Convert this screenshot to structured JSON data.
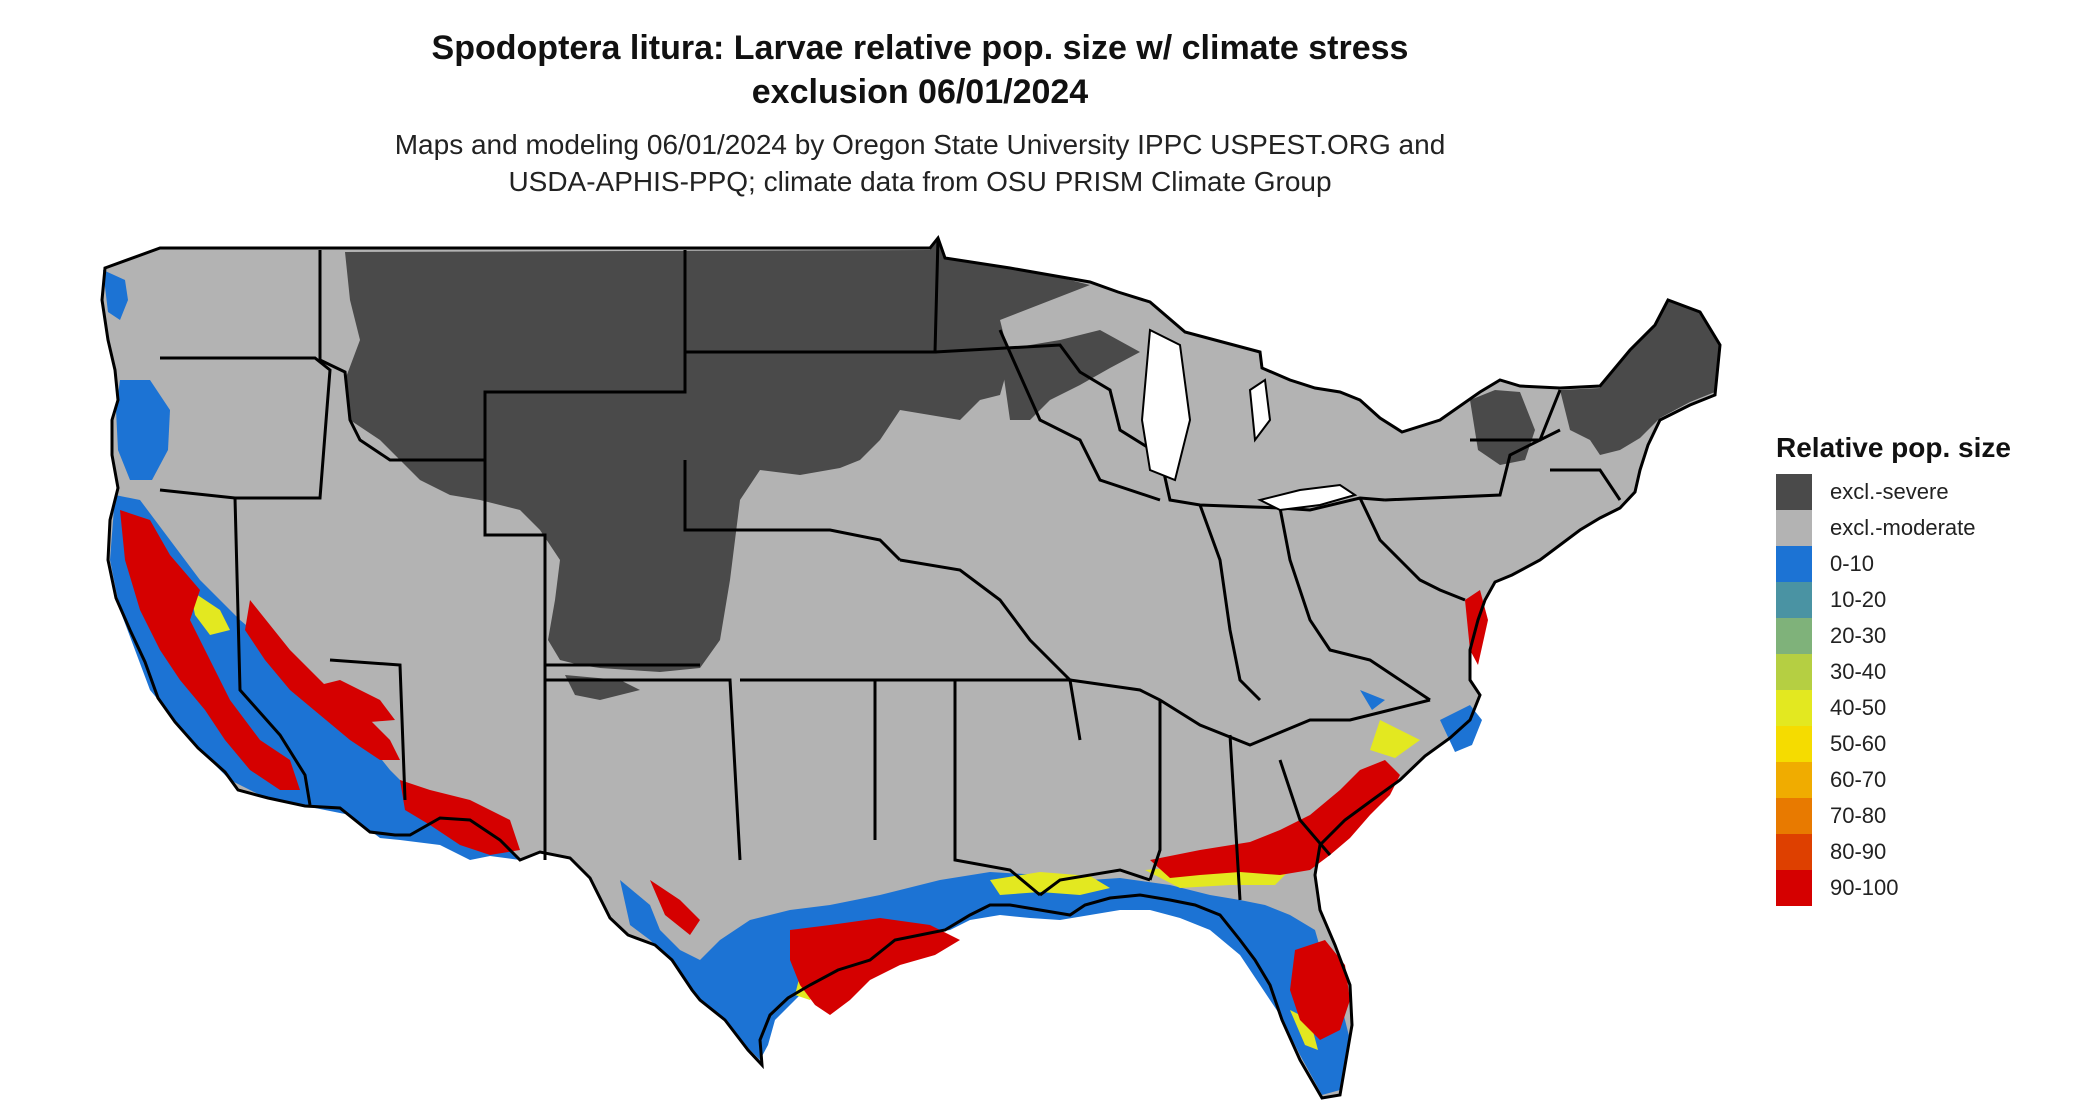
{
  "header": {
    "title_line1": "Spodoptera litura: Larvae relative pop. size w/ climate stress",
    "title_line2": "exclusion 06/01/2024",
    "subtitle_line1": "Maps and modeling 06/01/2024 by Oregon State University IPPC USPEST.ORG and",
    "subtitle_line2": "USDA-APHIS-PPQ; climate data from OSU PRISM Climate Group"
  },
  "legend": {
    "title": "Relative pop. size",
    "items": [
      {
        "label": "excl.-severe",
        "color": "#4a4a4a"
      },
      {
        "label": "excl.-moderate",
        "color": "#b3b3b3"
      },
      {
        "label": "0-10",
        "color": "#1c73d4"
      },
      {
        "label": "10-20",
        "color": "#4a93a3"
      },
      {
        "label": "20-30",
        "color": "#7fb27a"
      },
      {
        "label": "30-40",
        "color": "#b5cf42"
      },
      {
        "label": "40-50",
        "color": "#e3e820"
      },
      {
        "label": "50-60",
        "color": "#f5dc00"
      },
      {
        "label": "60-70",
        "color": "#f0ac00"
      },
      {
        "label": "70-80",
        "color": "#e87a00"
      },
      {
        "label": "80-90",
        "color": "#de4000"
      },
      {
        "label": "90-100",
        "color": "#d50000"
      }
    ]
  }
}
